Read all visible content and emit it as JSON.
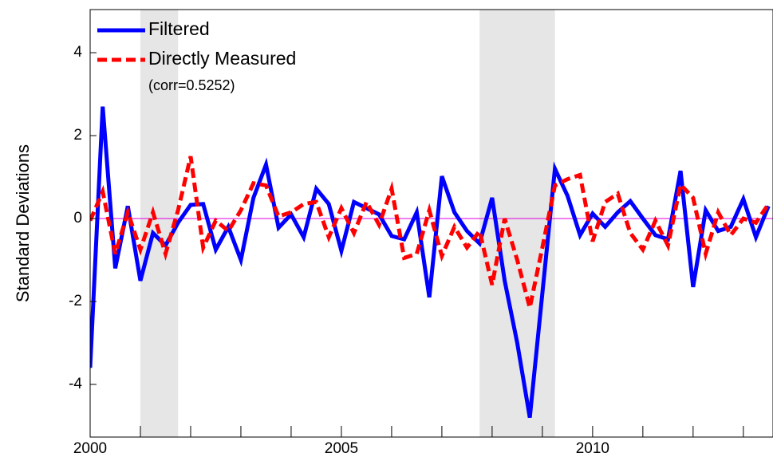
{
  "chart_data": {
    "type": "line",
    "ylabel": "Standard Deviations",
    "annotation": "(corr=0.5252)",
    "legend": "upper-left",
    "zero_line_color": "#e000e0",
    "shade_color": "#e6e6e6",
    "shaded_regions": [
      [
        2001,
        2001.75
      ],
      [
        2007.75,
        2009.25
      ]
    ],
    "xlim": [
      2000,
      2013.59
    ],
    "ylim": [
      -5.27,
      5.04
    ],
    "xticks": [
      2000,
      2005,
      2010
    ],
    "xminor_ticks": [
      2001,
      2002,
      2003,
      2004,
      2006,
      2007,
      2008,
      2009,
      2011,
      2012,
      2013
    ],
    "yticks": [
      -4,
      -2,
      0,
      2,
      4
    ],
    "x": [
      2000,
      2000.25,
      2000.5,
      2000.75,
      2001,
      2001.25,
      2001.5,
      2001.75,
      2002,
      2002.25,
      2002.5,
      2002.75,
      2003,
      2003.25,
      2003.5,
      2003.75,
      2004,
      2004.25,
      2004.5,
      2004.75,
      2005,
      2005.25,
      2005.5,
      2005.75,
      2006,
      2006.25,
      2006.5,
      2006.75,
      2007,
      2007.25,
      2007.5,
      2007.75,
      2008,
      2008.25,
      2008.5,
      2008.75,
      2009,
      2009.25,
      2009.5,
      2009.75,
      2010,
      2010.25,
      2010.5,
      2010.75,
      2011,
      2011.25,
      2011.5,
      2011.75,
      2012,
      2012.25,
      2012.5,
      2012.75,
      2013,
      2013.25,
      2013.5
    ],
    "series": [
      {
        "name": "Filtered",
        "color": "#0000ff",
        "dash": "solid",
        "values": [
          -3.6,
          2.7,
          -1.2,
          0.3,
          -1.5,
          -0.35,
          -0.65,
          -0.1,
          0.33,
          0.35,
          -0.75,
          -0.2,
          -1.0,
          0.5,
          1.3,
          -0.22,
          0.1,
          -0.45,
          0.72,
          0.35,
          -0.78,
          0.4,
          0.25,
          0.1,
          -0.42,
          -0.5,
          0.15,
          -1.9,
          1.02,
          0.15,
          -0.3,
          -0.6,
          0.5,
          -1.5,
          -3.0,
          -4.8,
          -1.8,
          1.2,
          0.55,
          -0.4,
          0.12,
          -0.2,
          0.15,
          0.42,
          0.0,
          -0.4,
          -0.5,
          1.15,
          -1.65,
          0.2,
          -0.3,
          -0.2,
          0.47,
          -0.45,
          0.3
        ]
      },
      {
        "name": "Directly Measured",
        "color": "#ff0000",
        "dash": "dashed",
        "values": [
          -0.05,
          0.65,
          -0.85,
          0.15,
          -0.75,
          0.15,
          -0.85,
          0.2,
          1.5,
          -0.7,
          -0.05,
          -0.3,
          0.2,
          0.85,
          0.8,
          0.05,
          0.15,
          0.35,
          0.4,
          -0.45,
          0.25,
          -0.35,
          0.4,
          -0.15,
          0.72,
          -0.95,
          -0.85,
          0.2,
          -0.9,
          -0.2,
          -0.7,
          -0.3,
          -1.6,
          0.0,
          -1.0,
          -2.15,
          -0.7,
          0.8,
          0.95,
          1.05,
          -0.55,
          0.4,
          0.6,
          -0.35,
          -0.75,
          -0.05,
          -0.65,
          0.82,
          0.5,
          -0.85,
          0.15,
          -0.4,
          0.0,
          -0.1,
          0.35
        ]
      }
    ]
  }
}
